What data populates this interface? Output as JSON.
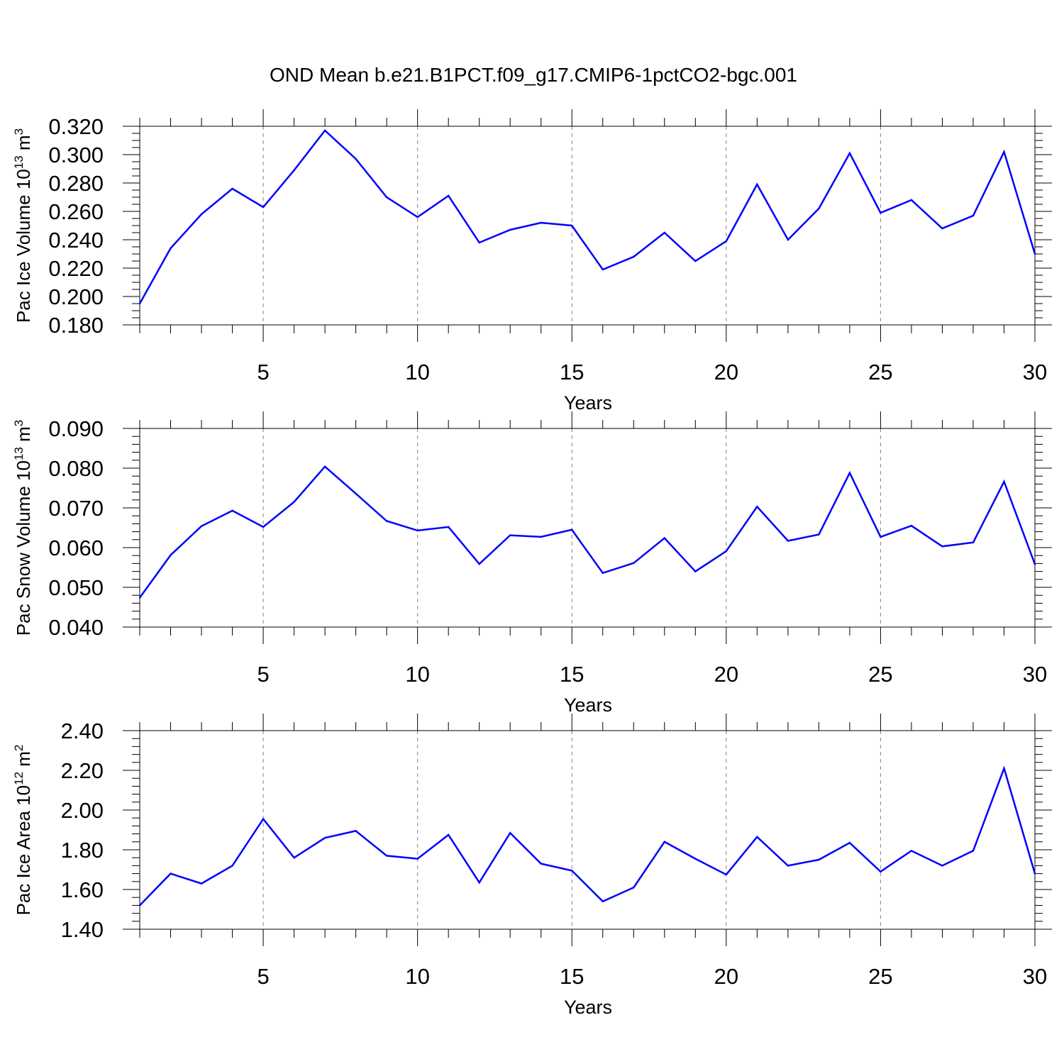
{
  "figure": {
    "title": "OND Mean b.e21.B1PCT.f09_g17.CMIP6-1pctCO2-bgc.001"
  },
  "style": {
    "line_color": "#0000ff",
    "axis_color": "#000000",
    "grid_color": "#808080"
  },
  "chart_data": [
    {
      "type": "line",
      "ylabel": {
        "main": "Pac Ice Volume 10",
        "sup1": "13",
        "mid": " m",
        "sup2": "3"
      },
      "xlabel": "Years",
      "xlim": [
        1,
        30
      ],
      "ylim": [
        0.18,
        0.32
      ],
      "x_ticks": [
        5,
        10,
        15,
        20,
        25,
        30
      ],
      "x_tick_labels": [
        "5",
        "10",
        "15",
        "20",
        "25",
        "30"
      ],
      "y_ticks": [
        0.18,
        0.2,
        0.22,
        0.24,
        0.26,
        0.28,
        0.3,
        0.32
      ],
      "y_tick_labels": [
        "0.180",
        "0.200",
        "0.220",
        "0.240",
        "0.260",
        "0.280",
        "0.300",
        "0.320"
      ],
      "y_minor_step": 0.005,
      "grid": "vertical dashed at major x ticks",
      "x": [
        1,
        2,
        3,
        4,
        5,
        6,
        7,
        8,
        9,
        10,
        11,
        12,
        13,
        14,
        15,
        16,
        17,
        18,
        19,
        20,
        21,
        22,
        23,
        24,
        25,
        26,
        27,
        28,
        29,
        30
      ],
      "series": [
        {
          "values": [
            0.195,
            0.234,
            0.258,
            0.276,
            0.263,
            0.289,
            0.317,
            0.297,
            0.27,
            0.256,
            0.271,
            0.238,
            0.247,
            0.252,
            0.25,
            0.219,
            0.228,
            0.245,
            0.225,
            0.239,
            0.279,
            0.24,
            0.262,
            0.301,
            0.259,
            0.268,
            0.248,
            0.257,
            0.302,
            0.23
          ]
        }
      ]
    },
    {
      "type": "line",
      "ylabel": {
        "main": "Pac Snow Volume 10",
        "sup1": "13",
        "mid": " m",
        "sup2": "3"
      },
      "xlabel": "Years",
      "xlim": [
        1,
        30
      ],
      "ylim": [
        0.04,
        0.09
      ],
      "x_ticks": [
        5,
        10,
        15,
        20,
        25,
        30
      ],
      "x_tick_labels": [
        "5",
        "10",
        "15",
        "20",
        "25",
        "30"
      ],
      "y_ticks": [
        0.04,
        0.05,
        0.06,
        0.07,
        0.08,
        0.09
      ],
      "y_tick_labels": [
        "0.040",
        "0.050",
        "0.060",
        "0.070",
        "0.080",
        "0.090"
      ],
      "y_minor_step": 0.002,
      "grid": "vertical dashed at major x ticks",
      "x": [
        1,
        2,
        3,
        4,
        5,
        6,
        7,
        8,
        9,
        10,
        11,
        12,
        13,
        14,
        15,
        16,
        17,
        18,
        19,
        20,
        21,
        22,
        23,
        24,
        25,
        26,
        27,
        28,
        29,
        30
      ],
      "series": [
        {
          "values": [
            0.0474,
            0.0581,
            0.0654,
            0.0693,
            0.0652,
            0.0715,
            0.0804,
            0.0736,
            0.0667,
            0.0643,
            0.0652,
            0.0559,
            0.0631,
            0.0627,
            0.0645,
            0.0536,
            0.0561,
            0.0624,
            0.054,
            0.0591,
            0.0703,
            0.0617,
            0.0633,
            0.0788,
            0.0627,
            0.0655,
            0.0603,
            0.0613,
            0.0766,
            0.0558
          ]
        }
      ]
    },
    {
      "type": "line",
      "ylabel": {
        "main": "Pac Ice Area 10",
        "sup1": "12",
        "mid": " m",
        "sup2": "2"
      },
      "xlabel": "Years",
      "xlim": [
        1,
        30
      ],
      "ylim": [
        1.4,
        2.4
      ],
      "x_ticks": [
        5,
        10,
        15,
        20,
        25,
        30
      ],
      "x_tick_labels": [
        "5",
        "10",
        "15",
        "20",
        "25",
        "30"
      ],
      "y_ticks": [
        1.4,
        1.6,
        1.8,
        2.0,
        2.2,
        2.4
      ],
      "y_tick_labels": [
        "1.40",
        "1.60",
        "1.80",
        "2.00",
        "2.20",
        "2.40"
      ],
      "y_minor_step": 0.04,
      "grid": "vertical dashed at major x ticks",
      "x": [
        1,
        2,
        3,
        4,
        5,
        6,
        7,
        8,
        9,
        10,
        11,
        12,
        13,
        14,
        15,
        16,
        17,
        18,
        19,
        20,
        21,
        22,
        23,
        24,
        25,
        26,
        27,
        28,
        29,
        30
      ],
      "series": [
        {
          "values": [
            1.52,
            1.68,
            1.63,
            1.72,
            1.955,
            1.76,
            1.86,
            1.895,
            1.77,
            1.755,
            1.875,
            1.635,
            1.885,
            1.73,
            1.695,
            1.54,
            1.61,
            1.84,
            1.755,
            1.675,
            1.865,
            1.72,
            1.75,
            1.835,
            1.69,
            1.795,
            1.72,
            1.795,
            2.21,
            1.68
          ]
        }
      ]
    }
  ]
}
